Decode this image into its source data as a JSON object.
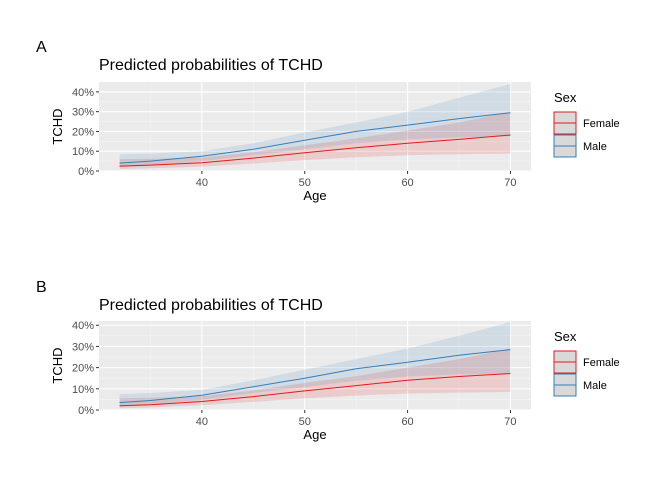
{
  "chart_data": [
    {
      "type": "line",
      "tag": "A",
      "title": "Predicted probabilities of TCHD",
      "xlabel": "Age",
      "ylabel": "TCHD",
      "xlim": [
        30,
        72
      ],
      "ylim": [
        0,
        0.45
      ],
      "x_ticks": [
        40,
        50,
        60,
        70
      ],
      "y_ticks": [
        0,
        0.1,
        0.2,
        0.3,
        0.4
      ],
      "y_tick_labels": [
        "0%",
        "10%",
        "20%",
        "30%",
        "40%"
      ],
      "grid": true,
      "legend": {
        "title": "Sex",
        "position": "right"
      },
      "series": [
        {
          "name": "Female",
          "color": "#e41a1c",
          "x": [
            32,
            35,
            40,
            45,
            50,
            55,
            60,
            65,
            70
          ],
          "y": [
            0.025,
            0.03,
            0.042,
            0.065,
            0.092,
            0.118,
            0.14,
            0.16,
            0.182
          ],
          "lower": [
            0.01,
            0.013,
            0.022,
            0.038,
            0.055,
            0.07,
            0.08,
            0.085,
            0.088
          ],
          "upper": [
            0.06,
            0.062,
            0.068,
            0.095,
            0.13,
            0.165,
            0.205,
            0.245,
            0.3
          ]
        },
        {
          "name": "Male",
          "color": "#377eb8",
          "x": [
            32,
            35,
            40,
            45,
            50,
            55,
            60,
            65,
            70
          ],
          "y": [
            0.04,
            0.05,
            0.075,
            0.11,
            0.155,
            0.2,
            0.232,
            0.265,
            0.295
          ],
          "lower": [
            0.02,
            0.028,
            0.05,
            0.08,
            0.11,
            0.14,
            0.16,
            0.17,
            0.175
          ],
          "upper": [
            0.085,
            0.088,
            0.1,
            0.14,
            0.195,
            0.245,
            0.3,
            0.37,
            0.44
          ]
        }
      ]
    },
    {
      "type": "line",
      "tag": "B",
      "title": "Predicted probabilities of TCHD",
      "xlabel": "Age",
      "ylabel": "TCHD",
      "xlim": [
        30,
        72
      ],
      "ylim": [
        0,
        0.42
      ],
      "x_ticks": [
        40,
        50,
        60,
        70
      ],
      "y_ticks": [
        0,
        0.1,
        0.2,
        0.3,
        0.4
      ],
      "y_tick_labels": [
        "0%",
        "10%",
        "20%",
        "30%",
        "40%"
      ],
      "grid": true,
      "legend": {
        "title": "Sex",
        "position": "right"
      },
      "series": [
        {
          "name": "Female",
          "color": "#e41a1c",
          "x": [
            32,
            35,
            40,
            45,
            50,
            55,
            60,
            65,
            70
          ],
          "y": [
            0.02,
            0.025,
            0.04,
            0.063,
            0.09,
            0.115,
            0.14,
            0.158,
            0.172
          ],
          "lower": [
            0.008,
            0.012,
            0.022,
            0.038,
            0.055,
            0.068,
            0.078,
            0.082,
            0.085
          ],
          "upper": [
            0.055,
            0.058,
            0.065,
            0.092,
            0.128,
            0.16,
            0.2,
            0.24,
            0.29
          ]
        },
        {
          "name": "Male",
          "color": "#377eb8",
          "x": [
            32,
            35,
            40,
            45,
            50,
            55,
            60,
            65,
            70
          ],
          "y": [
            0.035,
            0.045,
            0.07,
            0.11,
            0.15,
            0.195,
            0.225,
            0.258,
            0.285
          ],
          "lower": [
            0.018,
            0.025,
            0.048,
            0.08,
            0.108,
            0.138,
            0.158,
            0.168,
            0.172
          ],
          "upper": [
            0.075,
            0.08,
            0.095,
            0.14,
            0.19,
            0.24,
            0.29,
            0.35,
            0.415
          ]
        }
      ]
    }
  ]
}
